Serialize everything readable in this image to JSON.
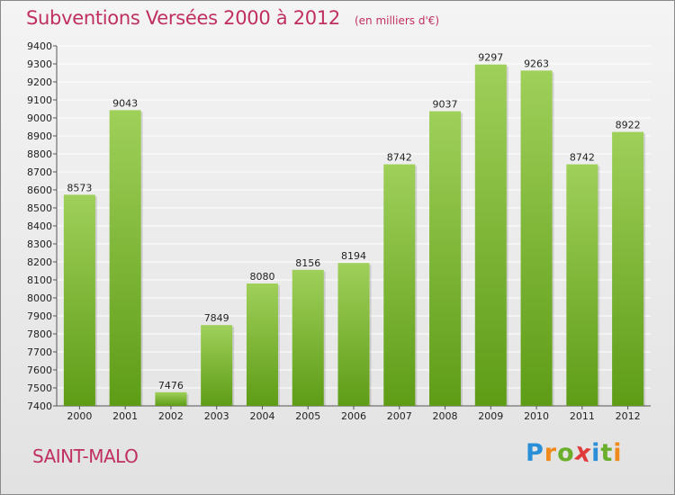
{
  "header": {
    "title": "Subventions Versées 2000 à 2012",
    "subtitle": "(en milliers d'€)"
  },
  "footer": {
    "commune": "SAINT-MALO",
    "logo_text": "Proxiti",
    "logo_colors": [
      "#2a8fd8",
      "#f08a1c",
      "#6aae2c",
      "#e03a3a",
      "#2a8fd8",
      "#6aae2c",
      "#f08a1c"
    ]
  },
  "colors": {
    "accent": "#c0305f",
    "bar_light": "#9fd05a",
    "bar_dark": "#5e9c16",
    "grid": "#ffffff",
    "axis": "#555555"
  },
  "chart_data": {
    "type": "bar",
    "title": "Subventions Versées 2000 à 2012",
    "subtitle": "(en milliers d'€)",
    "categories": [
      "2000",
      "2001",
      "2002",
      "2003",
      "2004",
      "2005",
      "2006",
      "2007",
      "2008",
      "2009",
      "2010",
      "2011",
      "2012"
    ],
    "values": [
      8573,
      9043,
      7476,
      7849,
      8080,
      8156,
      8194,
      8742,
      9037,
      9297,
      9263,
      8742,
      8922
    ],
    "ylim": [
      7400,
      9400
    ],
    "yticks": [
      7400,
      7500,
      7600,
      7700,
      7800,
      7900,
      8000,
      8100,
      8200,
      8300,
      8400,
      8500,
      8600,
      8700,
      8800,
      8900,
      9000,
      9100,
      9200,
      9300,
      9400
    ],
    "grid": true,
    "data_labels": true
  }
}
